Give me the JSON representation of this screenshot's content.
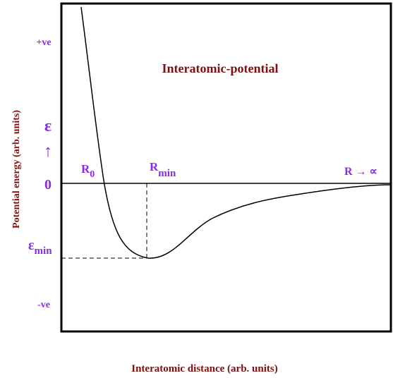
{
  "title": "Interatomic-potential",
  "y_axis_label": "Potential energy (arb. units)",
  "x_axis_label": "Interatomic distance (arb. units)",
  "y_labels": {
    "positive": "+ve",
    "energy_symbol": "ε",
    "arrow": "↑",
    "zero": "0",
    "min_base": "ε",
    "min_sub": "min",
    "negative": "-ve"
  },
  "curve_labels": {
    "r0_base": "R",
    "r0_sub": "0",
    "rmin_base": "R",
    "rmin_sub": "min",
    "rinf": "R → ∝"
  }
}
